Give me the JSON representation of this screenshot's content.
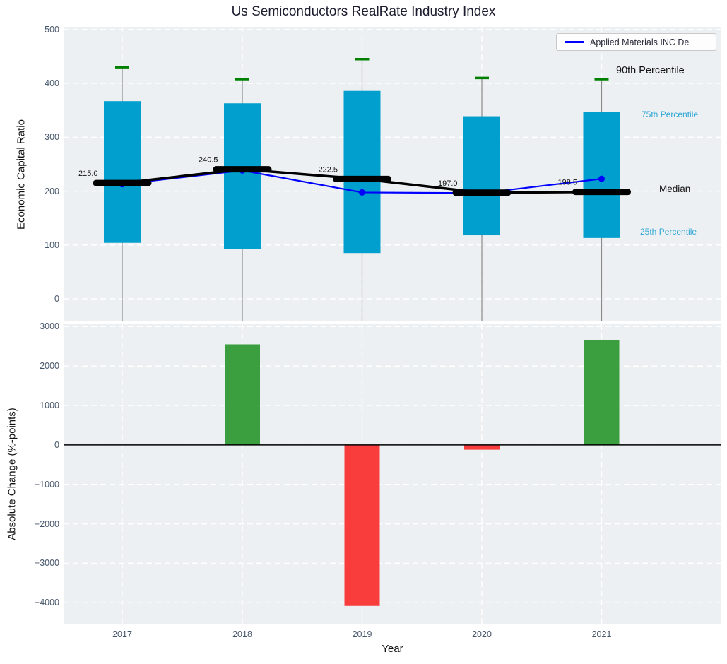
{
  "title": "Us Semiconductors RealRate Industry Index",
  "legend": {
    "label": "Applied Materials INC De"
  },
  "annotations": {
    "p90": "90th Percentile",
    "p75": "75th Percentile",
    "median": "Median",
    "p25": "25th Percentile"
  },
  "colors": {
    "box": "#009fce",
    "whisker_cap": "#008000",
    "stem": "#888888",
    "median": "#000000",
    "company_line": "#0000ff",
    "positive_bar": "#3b9e3f",
    "negative_bar": "#f93c3c",
    "axes_bg": "#edf0f2",
    "grid": "#ffffff",
    "tick_text": "#46566a",
    "percentile_text": "#2ca6d4"
  },
  "chart_data": [
    {
      "type": "boxplot+line",
      "title": "Us Semiconductors RealRate Industry Index",
      "ylabel": "Economic Capital Ratio",
      "ylim": [
        -42,
        505
      ],
      "yticks": [
        0,
        100,
        200,
        300,
        400,
        500
      ],
      "grid": "white dashed",
      "categories": [
        "2017",
        "2018",
        "2019",
        "2020",
        "2021"
      ],
      "boxes": [
        {
          "year": "2017",
          "p90": 430,
          "q3": 367,
          "median": 215.0,
          "q1": 104
        },
        {
          "year": "2018",
          "p90": 408,
          "q3": 363,
          "median": 240.5,
          "q1": 92
        },
        {
          "year": "2019",
          "p90": 445,
          "q3": 386,
          "median": 222.5,
          "q1": 85
        },
        {
          "year": "2020",
          "p90": 410,
          "q3": 339,
          "median": 197.0,
          "q1": 118
        },
        {
          "year": "2021",
          "p90": 408,
          "q3": 347,
          "median": 198.5,
          "q1": 113
        }
      ],
      "median_labels": [
        "215.0",
        "240.5",
        "222.5",
        "197.0",
        "198.5"
      ],
      "series": [
        {
          "name": "Applied Materials INC De",
          "values": [
            212.8,
            238.3,
            197.5,
            196.3,
            222.8
          ]
        }
      ],
      "legend_position": "upper right"
    },
    {
      "type": "bar",
      "ylabel": "Absolute Change (%-points)",
      "xlabel": "Year",
      "ylim": [
        -4550,
        3060
      ],
      "yticks": [
        3000,
        2000,
        1000,
        0,
        -1000,
        -2000,
        -3000,
        -4000
      ],
      "categories": [
        "2017",
        "2018",
        "2019",
        "2020",
        "2021"
      ],
      "values": [
        null,
        2550,
        -4080,
        -120,
        2650
      ],
      "zero_line": true
    }
  ]
}
